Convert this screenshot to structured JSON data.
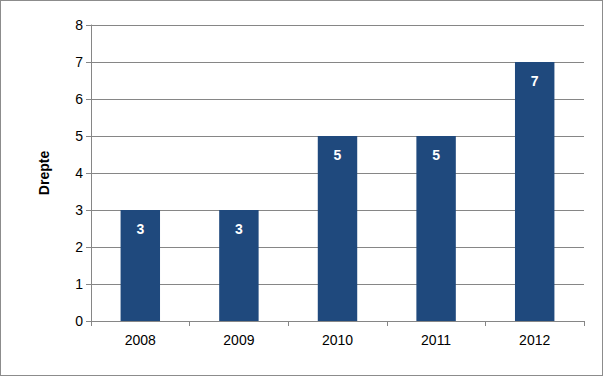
{
  "chart_data": {
    "type": "bar",
    "y_label": "Drepte",
    "categories": [
      "2008",
      "2009",
      "2010",
      "2011",
      "2012"
    ],
    "values": [
      3,
      3,
      5,
      5,
      7
    ],
    "color": "#1f497d",
    "ylim": [
      0,
      8
    ],
    "yticks": [
      0,
      1,
      2,
      3,
      4,
      5,
      6,
      7,
      8
    ],
    "grid": true,
    "data_labels": true
  }
}
